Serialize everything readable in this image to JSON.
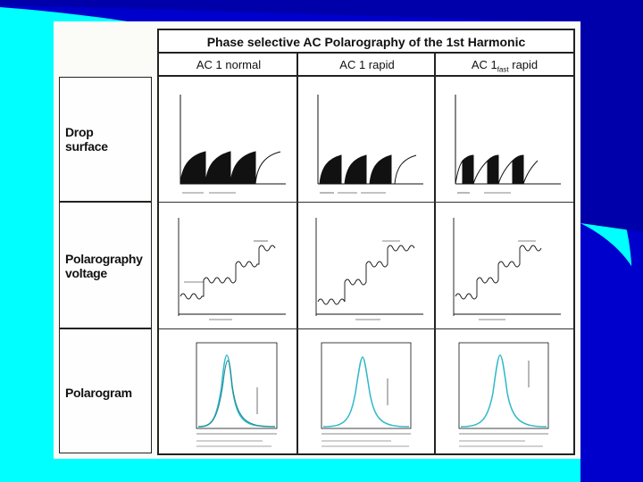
{
  "header": {
    "title": "Phase selective AC Polarography of the 1st Harmonic"
  },
  "columns": [
    {
      "label": "AC 1 normal"
    },
    {
      "label": "AC 1 rapid"
    },
    {
      "label_main": "AC 1",
      "label_sub": "fast",
      "label_rest": " rapid"
    }
  ],
  "rows": [
    {
      "line1": "Drop",
      "line2": "surface"
    },
    {
      "line1": "Polarography",
      "line2": "voltage"
    },
    {
      "line1": "Polarogram",
      "line2": ""
    }
  ],
  "colors": {
    "background": "#00ffff",
    "swoosh": "#0000cc",
    "curve": "#30b8c8",
    "ink": "#111111"
  }
}
